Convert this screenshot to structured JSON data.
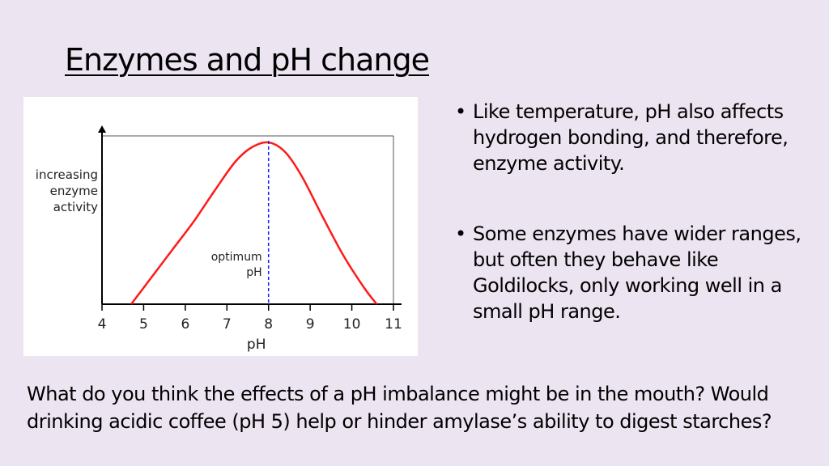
{
  "slide": {
    "title": "Enzymes and pH change",
    "bullets": [
      "Like temperature, pH also affects hydrogen bonding, and therefore, enzyme activity.",
      "Some enzymes have wider ranges, but often they behave like Goldilocks, only working well in a small pH range."
    ],
    "bullet_glyph": "•",
    "question": "What do you think the effects of a pH imbalance might be in the mouth? Would drinking acidic coffee (pH 5) help or hinder amylase’s ability to digest starches?"
  },
  "chart_data": {
    "type": "line",
    "title": "",
    "xlabel": "pH",
    "ylabel_lines": [
      "increasing",
      "enzyme",
      "activity"
    ],
    "x_ticks": [
      4,
      5,
      6,
      7,
      8,
      9,
      10,
      11
    ],
    "xlim": [
      4,
      11
    ],
    "ylim": [
      0,
      1
    ],
    "grid": false,
    "annotation": {
      "lines": [
        "optimum",
        "pH"
      ],
      "x": 8
    },
    "series": [
      {
        "color": "#ff1a1a",
        "x": [
          4.7,
          5.2,
          5.7,
          6.2,
          6.7,
          7.2,
          7.6,
          8.0,
          8.4,
          8.8,
          9.3,
          9.8,
          10.3,
          10.6
        ],
        "y": [
          0,
          0.17,
          0.34,
          0.51,
          0.7,
          0.88,
          0.97,
          1.0,
          0.94,
          0.79,
          0.54,
          0.3,
          0.1,
          0
        ]
      }
    ],
    "optimum_line_color": "#1a1aff",
    "axis_color": "#000000"
  }
}
